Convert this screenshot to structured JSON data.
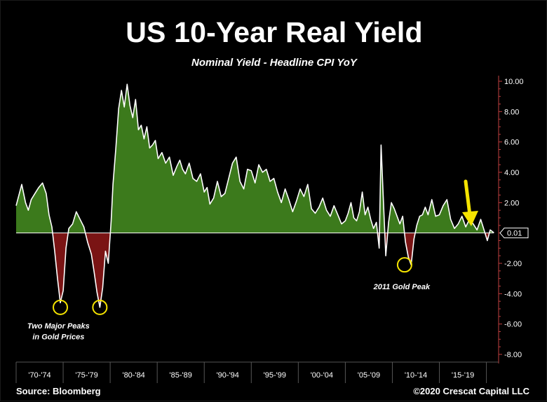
{
  "chart_data": {
    "type": "area",
    "title": "US 10-Year Real Yield",
    "subtitle": "Nominal Yield - Headline CPI YoY",
    "ylim": [
      -8,
      10
    ],
    "yticks": [
      10,
      8,
      6,
      4,
      2,
      0,
      -2,
      -4,
      -6,
      -8
    ],
    "ytick_labels": [
      "10.00",
      "8.00",
      "6.00",
      "4.00",
      "2.00",
      "",
      "-2.00",
      "-4.00",
      "-6.00",
      "-8.00"
    ],
    "xlim": [
      1970,
      2021
    ],
    "x_categories": [
      {
        "label": "'70-'74",
        "start": 1970,
        "end": 1975
      },
      {
        "label": "'75-'79",
        "start": 1975,
        "end": 1980
      },
      {
        "label": "'80-'84",
        "start": 1980,
        "end": 1985
      },
      {
        "label": "'85-'89",
        "start": 1985,
        "end": 1990
      },
      {
        "label": "'90-'94",
        "start": 1990,
        "end": 1995
      },
      {
        "label": "'95-'99",
        "start": 1995,
        "end": 2000
      },
      {
        "label": "'00-'04",
        "start": 2000,
        "end": 2005
      },
      {
        "label": "'05-'09",
        "start": 2005,
        "end": 2010
      },
      {
        "label": "'10-'14",
        "start": 2010,
        "end": 2015
      },
      {
        "label": "'15-'19",
        "start": 2015,
        "end": 2020
      }
    ],
    "series": [
      {
        "name": "US 10-Year Real Yield",
        "x": [
          1970.0,
          1970.3,
          1970.6,
          1971.0,
          1971.3,
          1971.6,
          1972.0,
          1972.4,
          1972.8,
          1973.2,
          1973.5,
          1973.8,
          1974.1,
          1974.4,
          1974.7,
          1975.0,
          1975.3,
          1975.6,
          1976.0,
          1976.4,
          1976.8,
          1977.2,
          1977.6,
          1978.0,
          1978.3,
          1978.6,
          1978.9,
          1979.2,
          1979.5,
          1979.8,
          1980.1,
          1980.3,
          1980.6,
          1980.9,
          1981.2,
          1981.5,
          1981.8,
          1982.1,
          1982.4,
          1982.7,
          1983.0,
          1983.3,
          1983.6,
          1983.9,
          1984.2,
          1984.5,
          1984.8,
          1985.1,
          1985.5,
          1985.9,
          1986.3,
          1986.7,
          1987.1,
          1987.4,
          1987.7,
          1988.0,
          1988.4,
          1988.8,
          1989.2,
          1989.6,
          1990.0,
          1990.3,
          1990.6,
          1991.0,
          1991.4,
          1991.8,
          1992.2,
          1992.6,
          1993.0,
          1993.4,
          1993.8,
          1994.2,
          1994.6,
          1995.0,
          1995.4,
          1995.8,
          1996.2,
          1996.6,
          1997.0,
          1997.4,
          1997.8,
          1998.2,
          1998.6,
          1999.0,
          1999.4,
          1999.8,
          2000.2,
          2000.6,
          2001.0,
          2001.4,
          2001.8,
          2002.2,
          2002.6,
          2003.0,
          2003.4,
          2003.8,
          2004.2,
          2004.6,
          2005.0,
          2005.3,
          2005.6,
          2005.9,
          2006.2,
          2006.5,
          2006.8,
          2007.1,
          2007.4,
          2007.7,
          2008.0,
          2008.3,
          2008.6,
          2008.8,
          2009.0,
          2009.3,
          2009.6,
          2009.9,
          2010.2,
          2010.5,
          2010.8,
          2011.1,
          2011.4,
          2011.7,
          2012.0,
          2012.3,
          2012.6,
          2012.9,
          2013.2,
          2013.5,
          2013.8,
          2014.2,
          2014.6,
          2015.0,
          2015.4,
          2015.8,
          2016.2,
          2016.6,
          2017.0,
          2017.4,
          2017.8,
          2018.2,
          2018.6,
          2019.0,
          2019.4,
          2019.8,
          2020.1,
          2020.4,
          2020.8
        ],
        "y": [
          1.8,
          2.5,
          3.2,
          2.0,
          1.5,
          2.2,
          2.6,
          3.0,
          3.3,
          2.6,
          1.2,
          0.4,
          -1.2,
          -3.0,
          -4.6,
          -3.8,
          -1.0,
          0.3,
          0.6,
          1.4,
          0.9,
          0.4,
          -0.6,
          -1.4,
          -2.6,
          -3.9,
          -4.9,
          -3.6,
          -1.2,
          -2.0,
          0.8,
          3.2,
          5.6,
          8.2,
          9.4,
          8.3,
          9.8,
          8.4,
          7.6,
          8.8,
          6.8,
          7.1,
          6.2,
          7.0,
          5.6,
          5.8,
          6.1,
          4.9,
          5.3,
          4.6,
          5.0,
          3.8,
          4.4,
          4.8,
          4.2,
          3.9,
          4.6,
          3.6,
          3.4,
          3.9,
          2.7,
          3.0,
          1.9,
          2.3,
          3.4,
          2.4,
          2.6,
          3.6,
          4.6,
          5.0,
          3.4,
          2.9,
          4.2,
          4.1,
          3.3,
          4.5,
          4.0,
          4.2,
          3.4,
          3.6,
          2.7,
          2.0,
          2.9,
          2.2,
          1.4,
          2.1,
          2.9,
          2.4,
          3.2,
          1.6,
          1.3,
          1.7,
          2.3,
          1.5,
          1.1,
          1.8,
          1.2,
          0.6,
          0.8,
          1.3,
          2.0,
          1.0,
          0.8,
          1.4,
          2.7,
          1.2,
          1.7,
          0.9,
          0.3,
          0.7,
          -1.0,
          5.8,
          2.8,
          -1.5,
          0.7,
          2.0,
          1.6,
          1.1,
          0.6,
          1.1,
          -0.6,
          -1.6,
          -2.1,
          -0.4,
          0.5,
          1.1,
          1.2,
          1.7,
          1.2,
          2.2,
          1.1,
          1.2,
          1.8,
          2.2,
          0.9,
          0.3,
          0.6,
          1.1,
          0.4,
          0.9,
          0.6,
          0.2,
          0.9,
          0.1,
          -0.5,
          0.2,
          0.01
        ],
        "pos_color": "#3c7a1c",
        "neg_color": "#7a1414",
        "line_color": "#ffffff"
      }
    ],
    "last_value_label": "0.01",
    "annotations": [
      {
        "text": "Two Major Peaks",
        "x": 1974.5,
        "y": -6.3
      },
      {
        "text": "in Gold Prices",
        "x": 1974.5,
        "y": -7.0
      },
      {
        "text": "2011 Gold Peak",
        "x": 2011.0,
        "y": -3.7
      }
    ],
    "circles": [
      {
        "x": 1974.7,
        "y": -4.9
      },
      {
        "x": 1978.9,
        "y": -4.9
      },
      {
        "x": 2011.3,
        "y": -2.1
      }
    ],
    "arrow": {
      "color": "#f5e400",
      "direction": "down"
    },
    "axis_color": "#c04040",
    "zero_line_color": "#ffffff"
  },
  "footer": {
    "source": "Source: Bloomberg",
    "copyright": "©2020 Crescat Capital LLC"
  }
}
